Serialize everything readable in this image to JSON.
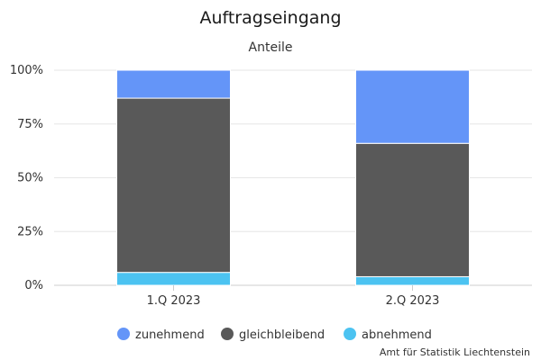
{
  "chart_data": {
    "type": "bar",
    "stacked": true,
    "title": "Auftragseingang",
    "subtitle": "Anteile",
    "categories": [
      "1.Q 2023",
      "2.Q 2023"
    ],
    "series": [
      {
        "name": "zunehmend",
        "color": "#6495f8",
        "values": [
          13,
          34
        ]
      },
      {
        "name": "gleichbleibend",
        "color": "#595959",
        "values": [
          81,
          62
        ]
      },
      {
        "name": "abnehmend",
        "color": "#4cc3f1",
        "values": [
          6,
          4
        ]
      }
    ],
    "ylim": [
      0,
      100
    ],
    "yticks": [
      "0%",
      "25%",
      "50%",
      "75%",
      "100%"
    ],
    "grid": true,
    "legend": "bottom-center",
    "credit": "Amt für Statistik Liechtenstein"
  }
}
